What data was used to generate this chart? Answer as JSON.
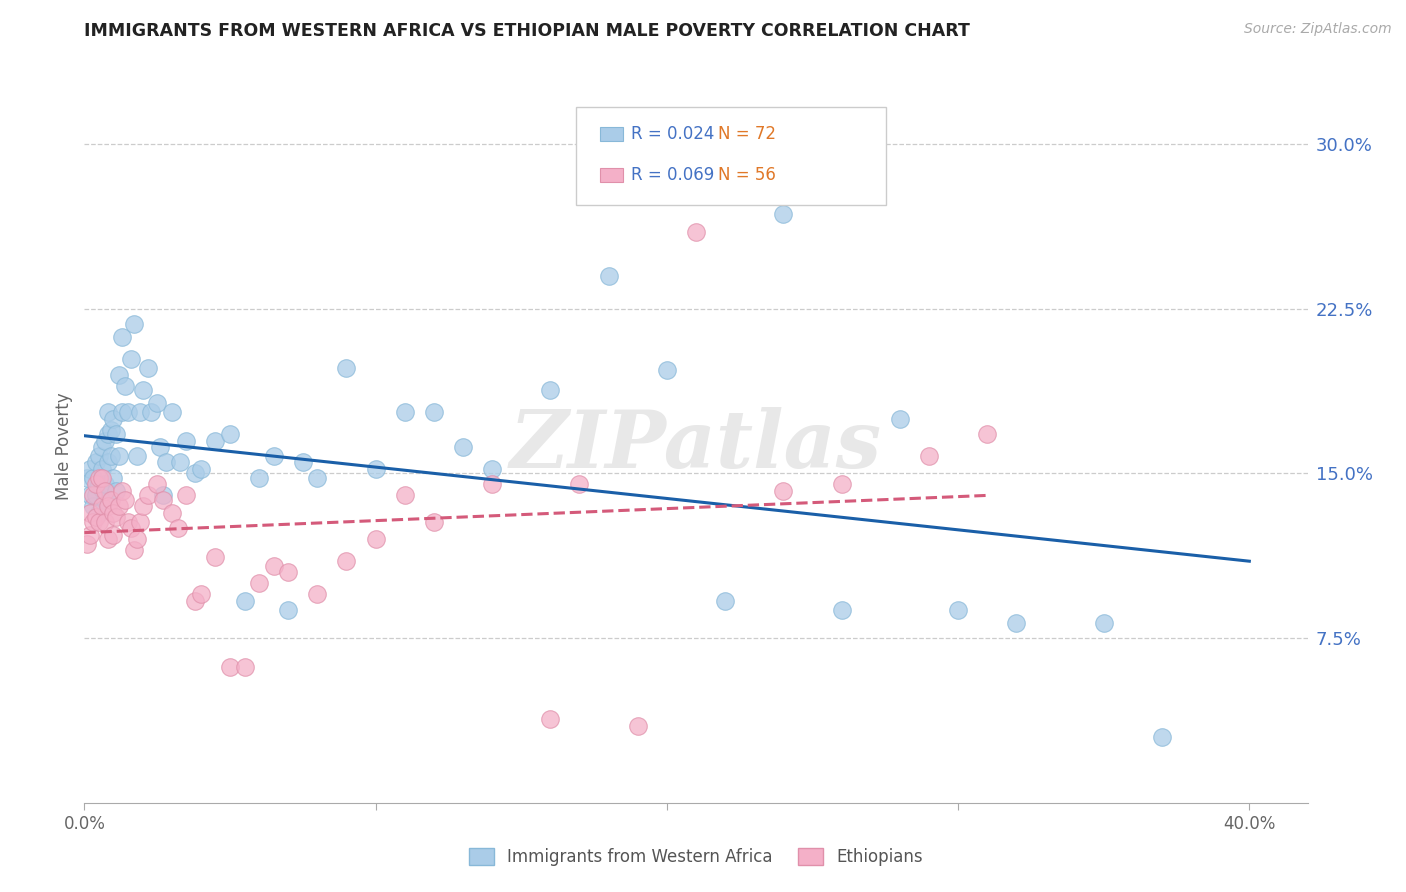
{
  "title": "IMMIGRANTS FROM WESTERN AFRICA VS ETHIOPIAN MALE POVERTY CORRELATION CHART",
  "source": "Source: ZipAtlas.com",
  "ylabel": "Male Poverty",
  "xlim": [
    0.0,
    0.42
  ],
  "ylim": [
    0.0,
    0.325
  ],
  "yticks": [
    0.075,
    0.15,
    0.225,
    0.3
  ],
  "yticklabels": [
    "7.5%",
    "15.0%",
    "22.5%",
    "30.0%"
  ],
  "xtick_pos": [
    0.0,
    0.1,
    0.2,
    0.3,
    0.4
  ],
  "xtick_labels": [
    "0.0%",
    "",
    "",
    "",
    "40.0%"
  ],
  "blue_R": 0.024,
  "blue_N": 72,
  "pink_R": 0.069,
  "pink_N": 56,
  "blue_color": "#aacce8",
  "pink_color": "#f4b0c8",
  "blue_edge": "#88b8d8",
  "pink_edge": "#e090aa",
  "blue_line_color": "#1a5fa8",
  "pink_line_color": "#d45a7a",
  "watermark": "ZIPatlas",
  "legend_label_blue": "Immigrants from Western Africa",
  "legend_label_pink": "Ethiopians",
  "blue_x": [
    0.001,
    0.002,
    0.002,
    0.003,
    0.003,
    0.004,
    0.004,
    0.005,
    0.005,
    0.005,
    0.006,
    0.006,
    0.006,
    0.007,
    0.007,
    0.007,
    0.008,
    0.008,
    0.008,
    0.009,
    0.009,
    0.01,
    0.01,
    0.011,
    0.011,
    0.012,
    0.012,
    0.013,
    0.013,
    0.014,
    0.015,
    0.016,
    0.017,
    0.018,
    0.019,
    0.02,
    0.022,
    0.023,
    0.025,
    0.026,
    0.027,
    0.028,
    0.03,
    0.033,
    0.035,
    0.038,
    0.04,
    0.045,
    0.05,
    0.055,
    0.06,
    0.065,
    0.07,
    0.075,
    0.08,
    0.09,
    0.1,
    0.11,
    0.12,
    0.13,
    0.14,
    0.16,
    0.18,
    0.2,
    0.22,
    0.24,
    0.26,
    0.28,
    0.3,
    0.32,
    0.35,
    0.37
  ],
  "blue_y": [
    0.148,
    0.14,
    0.152,
    0.135,
    0.148,
    0.14,
    0.155,
    0.132,
    0.145,
    0.158,
    0.143,
    0.152,
    0.162,
    0.138,
    0.145,
    0.165,
    0.155,
    0.168,
    0.178,
    0.158,
    0.17,
    0.148,
    0.175,
    0.142,
    0.168,
    0.158,
    0.195,
    0.178,
    0.212,
    0.19,
    0.178,
    0.202,
    0.218,
    0.158,
    0.178,
    0.188,
    0.198,
    0.178,
    0.182,
    0.162,
    0.14,
    0.155,
    0.178,
    0.155,
    0.165,
    0.15,
    0.152,
    0.165,
    0.168,
    0.092,
    0.148,
    0.158,
    0.088,
    0.155,
    0.148,
    0.198,
    0.152,
    0.178,
    0.178,
    0.162,
    0.152,
    0.188,
    0.24,
    0.197,
    0.092,
    0.268,
    0.088,
    0.175,
    0.088,
    0.082,
    0.082,
    0.03
  ],
  "pink_x": [
    0.001,
    0.002,
    0.002,
    0.003,
    0.003,
    0.004,
    0.004,
    0.005,
    0.005,
    0.006,
    0.006,
    0.007,
    0.007,
    0.008,
    0.008,
    0.009,
    0.01,
    0.01,
    0.011,
    0.012,
    0.013,
    0.014,
    0.015,
    0.016,
    0.017,
    0.018,
    0.019,
    0.02,
    0.022,
    0.025,
    0.027,
    0.03,
    0.032,
    0.035,
    0.038,
    0.04,
    0.045,
    0.05,
    0.055,
    0.06,
    0.065,
    0.07,
    0.08,
    0.09,
    0.1,
    0.11,
    0.12,
    0.14,
    0.16,
    0.17,
    0.19,
    0.21,
    0.24,
    0.26,
    0.29,
    0.31
  ],
  "pink_y": [
    0.118,
    0.132,
    0.122,
    0.14,
    0.128,
    0.13,
    0.145,
    0.128,
    0.148,
    0.135,
    0.148,
    0.142,
    0.128,
    0.135,
    0.12,
    0.138,
    0.122,
    0.132,
    0.13,
    0.135,
    0.142,
    0.138,
    0.128,
    0.125,
    0.115,
    0.12,
    0.128,
    0.135,
    0.14,
    0.145,
    0.138,
    0.132,
    0.125,
    0.14,
    0.092,
    0.095,
    0.112,
    0.062,
    0.062,
    0.1,
    0.108,
    0.105,
    0.095,
    0.11,
    0.12,
    0.14,
    0.128,
    0.145,
    0.038,
    0.145,
    0.035,
    0.26,
    0.142,
    0.145,
    0.158,
    0.168
  ]
}
